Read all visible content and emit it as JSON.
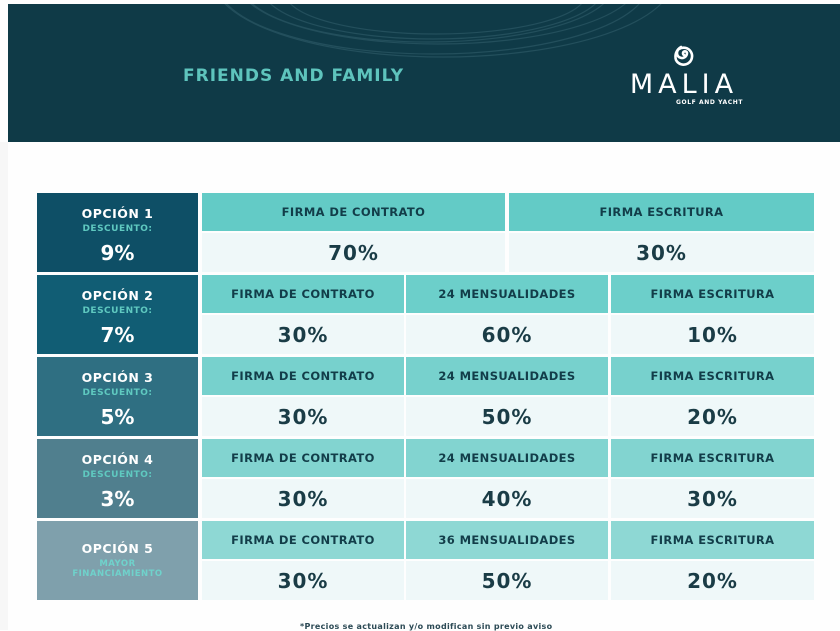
{
  "header": {
    "title": "FRIENDS AND FAMILY",
    "brand": "MALIA",
    "brand_sub": "GOLF AND YACHT",
    "logo_icon": "spiral-icon"
  },
  "colors": {
    "header_bg": "#0f3a47",
    "title_teal": "#5ec4bd",
    "option_1_bg": "#0e4f66",
    "option_2_bg": "#115d74",
    "option_3_bg": "#2f6f82",
    "option_4_bg": "#507f8e",
    "option_5_bg": "#7fa0ac",
    "cell_header_bg": "#6fcfcb",
    "cell_value_bg": "#eff8f9"
  },
  "options": [
    {
      "title": "OPCIÓN 1",
      "sub": "DESCUENTO:",
      "discount": "9%",
      "cells": [
        {
          "label": "FIRMA DE CONTRATO",
          "value": "70%"
        },
        {
          "label": "FIRMA ESCRITURA",
          "value": "30%"
        }
      ]
    },
    {
      "title": "OPCIÓN 2",
      "sub": "DESCUENTO:",
      "discount": "7%",
      "cells": [
        {
          "label": "FIRMA DE CONTRATO",
          "value": "30%"
        },
        {
          "label": "24 MENSUALIDADES",
          "value": "60%"
        },
        {
          "label": "FIRMA ESCRITURA",
          "value": "10%"
        }
      ]
    },
    {
      "title": "OPCIÓN 3",
      "sub": "DESCUENTO:",
      "discount": "5%",
      "cells": [
        {
          "label": "FIRMA DE CONTRATO",
          "value": "30%"
        },
        {
          "label": "24 MENSUALIDADES",
          "value": "50%"
        },
        {
          "label": "FIRMA ESCRITURA",
          "value": "20%"
        }
      ]
    },
    {
      "title": "OPCIÓN 4",
      "sub": "DESCUENTO:",
      "discount": "3%",
      "cells": [
        {
          "label": "FIRMA DE CONTRATO",
          "value": "30%"
        },
        {
          "label": "24 MENSUALIDADES",
          "value": "40%"
        },
        {
          "label": "FIRMA ESCRITURA",
          "value": "30%"
        }
      ]
    },
    {
      "title": "OPCIÓN 5",
      "sub": "MAYOR FINANCIAMIENTO",
      "discount": "",
      "cells": [
        {
          "label": "FIRMA DE CONTRATO",
          "value": "30%"
        },
        {
          "label": "36 MENSUALIDADES",
          "value": "50%"
        },
        {
          "label": "FIRMA ESCRITURA",
          "value": "20%"
        }
      ]
    }
  ],
  "footer": {
    "note": "*Precios se actualizan y/o modifican sin previo aviso"
  }
}
